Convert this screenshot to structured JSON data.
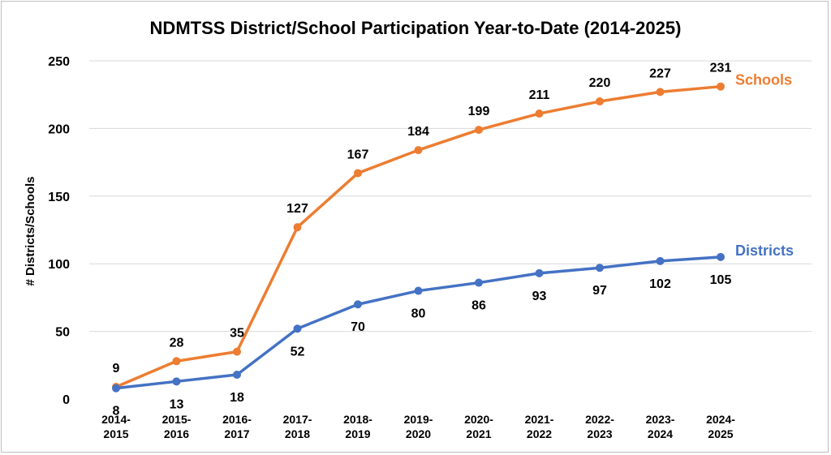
{
  "chart_data": {
    "type": "line",
    "title": "NDMTSS District/School Participation Year-to-Date (2014-2025)",
    "xlabel": "",
    "ylabel": "# Districts/Schools",
    "ylim": [
      0,
      250
    ],
    "yticks": [
      0,
      50,
      100,
      150,
      200,
      250
    ],
    "grid": true,
    "legend": "inline-right",
    "categories": [
      [
        "2014-",
        "2015"
      ],
      [
        "2015-",
        "2016"
      ],
      [
        "2016-",
        "2017"
      ],
      [
        "2017-",
        "2018"
      ],
      [
        "2018-",
        "2019"
      ],
      [
        "2019-",
        "2020"
      ],
      [
        "2020-",
        "2021"
      ],
      [
        "2021-",
        "2022"
      ],
      [
        "2022-",
        "2023"
      ],
      [
        "2023-",
        "2024"
      ],
      [
        "2024-",
        "2025"
      ]
    ],
    "series": [
      {
        "name": "Schools",
        "color": "#ED7D31",
        "values": [
          9,
          28,
          35,
          127,
          167,
          184,
          199,
          211,
          220,
          227,
          231
        ],
        "label_position": "above"
      },
      {
        "name": "Districts",
        "color": "#4472C4",
        "values": [
          8,
          13,
          18,
          52,
          70,
          80,
          86,
          93,
          97,
          102,
          105
        ],
        "label_position": "below"
      }
    ]
  }
}
